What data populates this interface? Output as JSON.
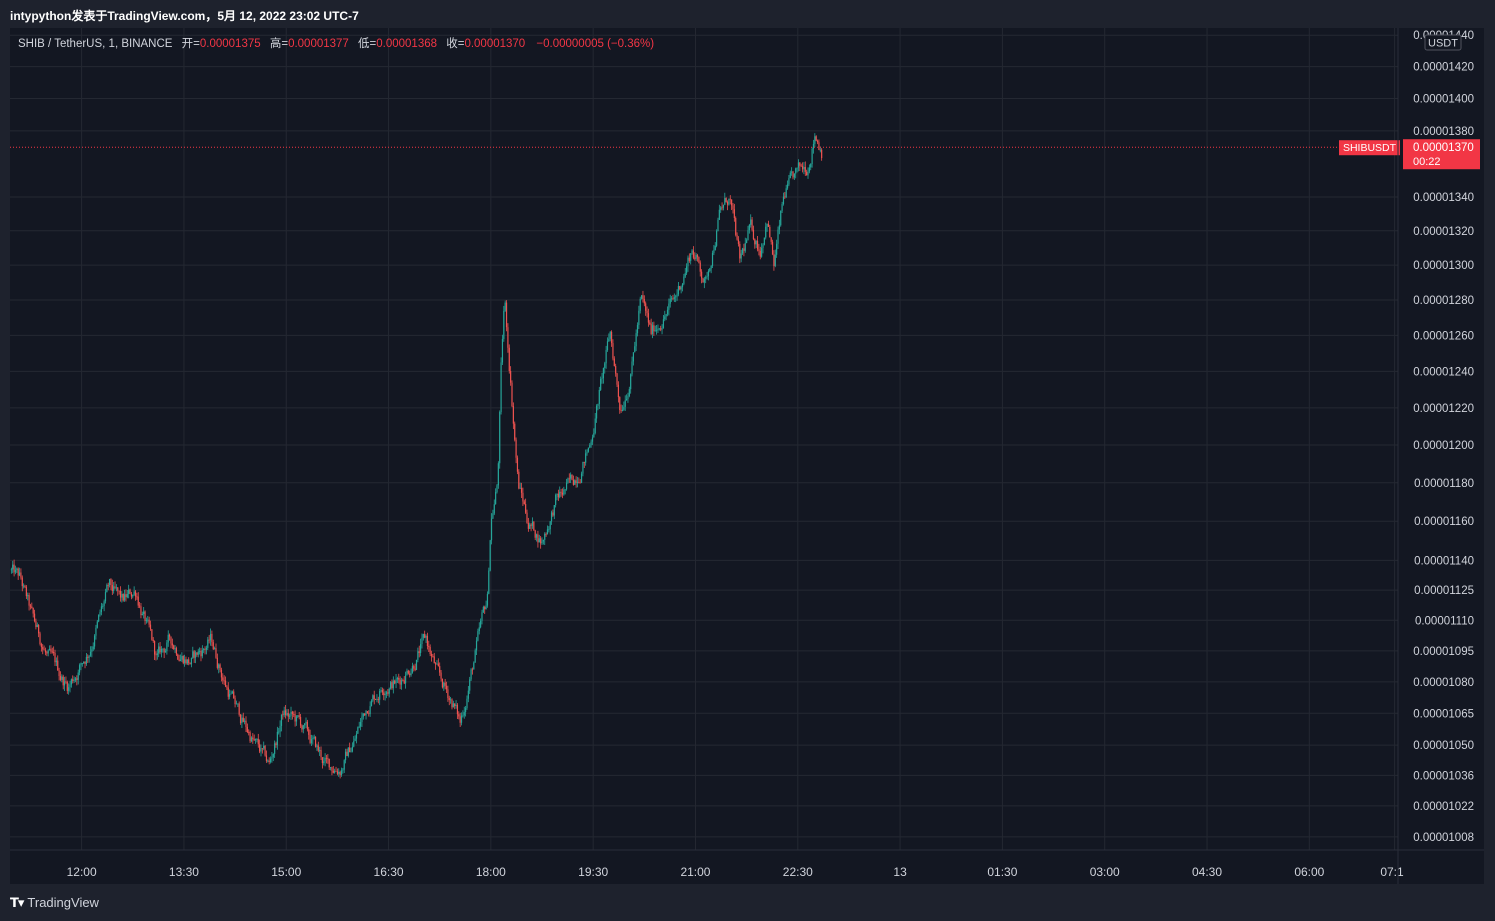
{
  "header": {
    "title": "intypython发表于TradingView.com，5月 12, 2022 23:02 UTC-7"
  },
  "legend": {
    "symbol": "SHIB / TetherUS, 1, BINANCE",
    "open_label": "开=",
    "open": "0.00001375",
    "high_label": "高=",
    "high": "0.00001377",
    "low_label": "低=",
    "low": "0.00001368",
    "close_label": "收=",
    "close": "0.00001370",
    "change": "−0.00000005 (−0.36%)"
  },
  "price_axis": {
    "unit": "USDT",
    "current_symbol": "SHIBUSDT",
    "current_price": "0.00001370",
    "countdown": "00:22"
  },
  "footer": {
    "brand": "TradingView",
    "brand_icon": "tradingview-logo-icon"
  },
  "colors": {
    "up": "#26a69a",
    "down": "#ef5350",
    "background": "#131722",
    "grid": "#242832",
    "price_line": "#f23645"
  },
  "chart_data": {
    "type": "candlestick",
    "symbol": "SHIBUSDT",
    "interval": "1",
    "scale": "log",
    "ylim": [
      1.0026e-05,
      1.4427e-05
    ],
    "y_ticks": [
      "0.00001440",
      "0.00001420",
      "0.00001400",
      "0.00001380",
      "0.00001340",
      "0.00001320",
      "0.00001300",
      "0.00001280",
      "0.00001260",
      "0.00001240",
      "0.00001220",
      "0.00001200",
      "0.00001180",
      "0.00001160",
      "0.00001140",
      "0.00001125",
      "0.00001110",
      "0.00001095",
      "0.00001080",
      "0.00001065",
      "0.00001050",
      "0.00001036",
      "0.00001022",
      "0.00001008"
    ],
    "x_ticks": [
      {
        "label": "12:00",
        "hour": 12
      },
      {
        "label": "13:30",
        "hour": 13.5
      },
      {
        "label": "15:00",
        "hour": 15
      },
      {
        "label": "16:30",
        "hour": 16.5
      },
      {
        "label": "18:00",
        "hour": 18
      },
      {
        "label": "19:30",
        "hour": 19.5
      },
      {
        "label": "21:00",
        "hour": 21
      },
      {
        "label": "22:30",
        "hour": 22.5
      },
      {
        "label": "13",
        "hour": 24
      },
      {
        "label": "01:30",
        "hour": 25.5
      },
      {
        "label": "03:00",
        "hour": 27
      },
      {
        "label": "04:30",
        "hour": 28.5
      },
      {
        "label": "06:00",
        "hour": 30
      },
      {
        "label": "07:1",
        "hour": 31.25
      }
    ],
    "xlim_hours": [
      10.95,
      31.3
    ],
    "current_price": 1.37e-05,
    "close_path": [
      {
        "hour": 10.95,
        "price": 1.135e-05
      },
      {
        "hour": 11.1,
        "price": 1.13e-05
      },
      {
        "hour": 11.3,
        "price": 1.108e-05
      },
      {
        "hour": 11.5,
        "price": 1.092e-05
      },
      {
        "hour": 11.8,
        "price": 1.078e-05
      },
      {
        "hour": 12.1,
        "price": 1.095e-05
      },
      {
        "hour": 12.4,
        "price": 1.125e-05
      },
      {
        "hour": 12.6,
        "price": 1.118e-05
      },
      {
        "hour": 12.8,
        "price": 1.125e-05
      },
      {
        "hour": 13.1,
        "price": 1.09e-05
      },
      {
        "hour": 13.3,
        "price": 1.1e-05
      },
      {
        "hour": 13.6,
        "price": 1.09e-05
      },
      {
        "hour": 13.9,
        "price": 1.1e-05
      },
      {
        "hour": 14.1,
        "price": 1.08e-05
      },
      {
        "hour": 14.3,
        "price": 1.065e-05
      },
      {
        "hour": 14.55,
        "price": 1.05e-05
      },
      {
        "hour": 14.75,
        "price": 1.04e-05
      },
      {
        "hour": 14.95,
        "price": 1.065e-05
      },
      {
        "hour": 15.2,
        "price": 1.06e-05
      },
      {
        "hour": 15.4,
        "price": 1.05e-05
      },
      {
        "hour": 15.6,
        "price": 1.04e-05
      },
      {
        "hour": 15.8,
        "price": 1.04e-05
      },
      {
        "hour": 16.0,
        "price": 1.052e-05
      },
      {
        "hour": 16.2,
        "price": 1.07e-05
      },
      {
        "hour": 16.45,
        "price": 1.08e-05
      },
      {
        "hour": 16.65,
        "price": 1.08e-05
      },
      {
        "hour": 16.85,
        "price": 1.09e-05
      },
      {
        "hour": 17.05,
        "price": 1.1e-05
      },
      {
        "hour": 17.25,
        "price": 1.08e-05
      },
      {
        "hour": 17.45,
        "price": 1.07e-05
      },
      {
        "hour": 17.55,
        "price": 1.06e-05
      },
      {
        "hour": 17.75,
        "price": 1.09e-05
      },
      {
        "hour": 17.95,
        "price": 1.12e-05
      },
      {
        "hour": 18.0,
        "price": 1.16e-05
      },
      {
        "hour": 18.1,
        "price": 1.18e-05
      },
      {
        "hour": 18.15,
        "price": 1.24e-05
      },
      {
        "hour": 18.2,
        "price": 1.28e-05
      },
      {
        "hour": 18.3,
        "price": 1.23e-05
      },
      {
        "hour": 18.4,
        "price": 1.18e-05
      },
      {
        "hour": 18.55,
        "price": 1.16e-05
      },
      {
        "hour": 18.75,
        "price": 1.15e-05
      },
      {
        "hour": 18.95,
        "price": 1.17e-05
      },
      {
        "hour": 19.2,
        "price": 1.18e-05
      },
      {
        "hour": 19.45,
        "price": 1.2e-05
      },
      {
        "hour": 19.6,
        "price": 1.23e-05
      },
      {
        "hour": 19.75,
        "price": 1.26e-05
      },
      {
        "hour": 19.9,
        "price": 1.22e-05
      },
      {
        "hour": 20.05,
        "price": 1.24e-05
      },
      {
        "hour": 20.2,
        "price": 1.28e-05
      },
      {
        "hour": 20.35,
        "price": 1.26e-05
      },
      {
        "hour": 20.5,
        "price": 1.27e-05
      },
      {
        "hour": 20.7,
        "price": 1.28e-05
      },
      {
        "hour": 20.95,
        "price": 1.31e-05
      },
      {
        "hour": 21.15,
        "price": 1.29e-05
      },
      {
        "hour": 21.35,
        "price": 1.33e-05
      },
      {
        "hour": 21.5,
        "price": 1.34e-05
      },
      {
        "hour": 21.65,
        "price": 1.3e-05
      },
      {
        "hour": 21.8,
        "price": 1.32e-05
      },
      {
        "hour": 21.95,
        "price": 1.31e-05
      },
      {
        "hour": 22.05,
        "price": 1.33e-05
      },
      {
        "hour": 22.15,
        "price": 1.3e-05
      },
      {
        "hour": 22.3,
        "price": 1.34e-05
      },
      {
        "hour": 22.45,
        "price": 1.35e-05
      },
      {
        "hour": 22.65,
        "price": 1.36e-05
      },
      {
        "hour": 22.75,
        "price": 1.38e-05
      },
      {
        "hour": 22.85,
        "price": 1.37e-05
      }
    ]
  }
}
